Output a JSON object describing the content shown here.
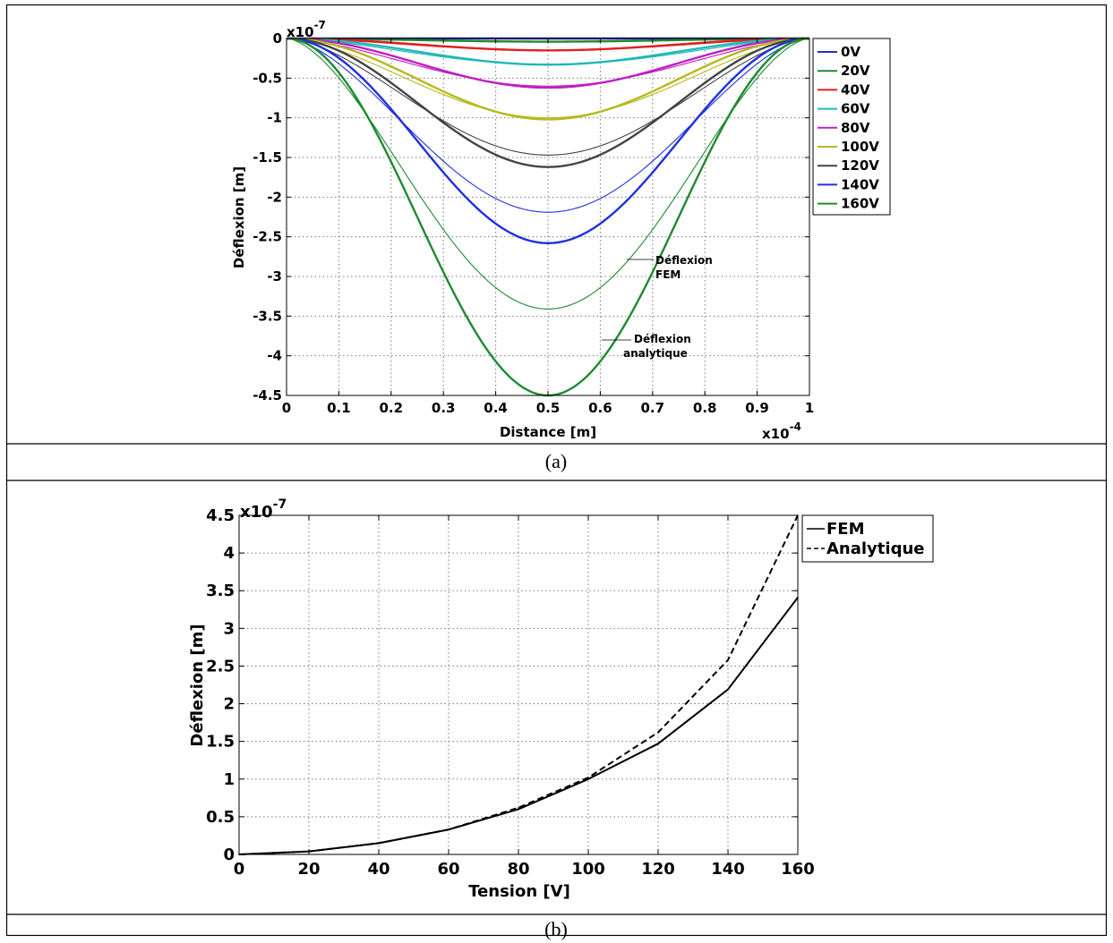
{
  "captions": [
    "(a)",
    "(b)"
  ],
  "chart_data": [
    {
      "type": "line",
      "title": "",
      "xlabel": "Distance [m]",
      "ylabel": "Déflexion [m]",
      "x_exponent": "x10",
      "x_exponent_power": "-4",
      "y_exponent": "x10",
      "y_exponent_power": "-7",
      "xlim": [
        0,
        1
      ],
      "ylim": [
        -4.5,
        0
      ],
      "xticks": [
        "0",
        "0.1",
        "0.2",
        "0.3",
        "0.4",
        "0.5",
        "0.6",
        "0.7",
        "0.8",
        "0.9",
        "1"
      ],
      "yticks": [
        "0",
        "-0.5",
        "-1",
        "-1.5",
        "-2",
        "-2.5",
        "-3",
        "-3.5",
        "-4",
        "-4.5"
      ],
      "grid": true,
      "legend_position": "right",
      "annotations": [
        {
          "text": [
            "Déflexion",
            "FEM"
          ]
        },
        {
          "text": [
            "Déflexion",
            "analytique"
          ]
        }
      ],
      "series": [
        {
          "name": "0V",
          "color": "#2030c0",
          "fem_min": 0.0,
          "analytic_min": 0.0
        },
        {
          "name": "20V",
          "color": "#1f8a30",
          "fem_min": -0.04,
          "analytic_min": -0.04
        },
        {
          "name": "40V",
          "color": "#e02020",
          "fem_min": -0.15,
          "analytic_min": -0.15
        },
        {
          "name": "60V",
          "color": "#20b8b8",
          "fem_min": -0.33,
          "analytic_min": -0.33
        },
        {
          "name": "80V",
          "color": "#c020c0",
          "fem_min": -0.6,
          "analytic_min": -0.62
        },
        {
          "name": "100V",
          "color": "#b8b820",
          "fem_min": -1.0,
          "analytic_min": -1.02
        },
        {
          "name": "120V",
          "color": "#444444",
          "fem_min": -1.47,
          "analytic_min": -1.62
        },
        {
          "name": "140V",
          "color": "#1f30e0",
          "fem_min": -2.19,
          "analytic_min": -2.58
        },
        {
          "name": "160V",
          "color": "#1f8a30",
          "fem_min": -3.41,
          "analytic_min": -4.5
        }
      ]
    },
    {
      "type": "line",
      "title": "",
      "xlabel": "Tension [V]",
      "ylabel": "Déflexion [m]",
      "y_exponent": "x10",
      "y_exponent_power": "-7",
      "xlim": [
        0,
        160
      ],
      "ylim": [
        0,
        4.5
      ],
      "xticks": [
        "0",
        "20",
        "40",
        "60",
        "80",
        "100",
        "120",
        "140",
        "160"
      ],
      "yticks": [
        "0",
        "0.5",
        "1",
        "1.5",
        "2",
        "2.5",
        "3",
        "3.5",
        "4",
        "4.5"
      ],
      "grid": true,
      "legend_position": "top-right",
      "series": [
        {
          "name": "FEM",
          "style": "solid",
          "color": "#000000",
          "x": [
            0,
            20,
            40,
            60,
            80,
            100,
            120,
            140,
            160
          ],
          "y": [
            0,
            0.04,
            0.15,
            0.33,
            0.6,
            1.0,
            1.47,
            2.19,
            3.41
          ]
        },
        {
          "name": "Analytique",
          "style": "dashed",
          "color": "#000000",
          "x": [
            0,
            20,
            40,
            60,
            80,
            100,
            120,
            140,
            160
          ],
          "y": [
            0,
            0.04,
            0.15,
            0.33,
            0.62,
            1.02,
            1.62,
            2.58,
            4.5
          ]
        }
      ]
    }
  ]
}
